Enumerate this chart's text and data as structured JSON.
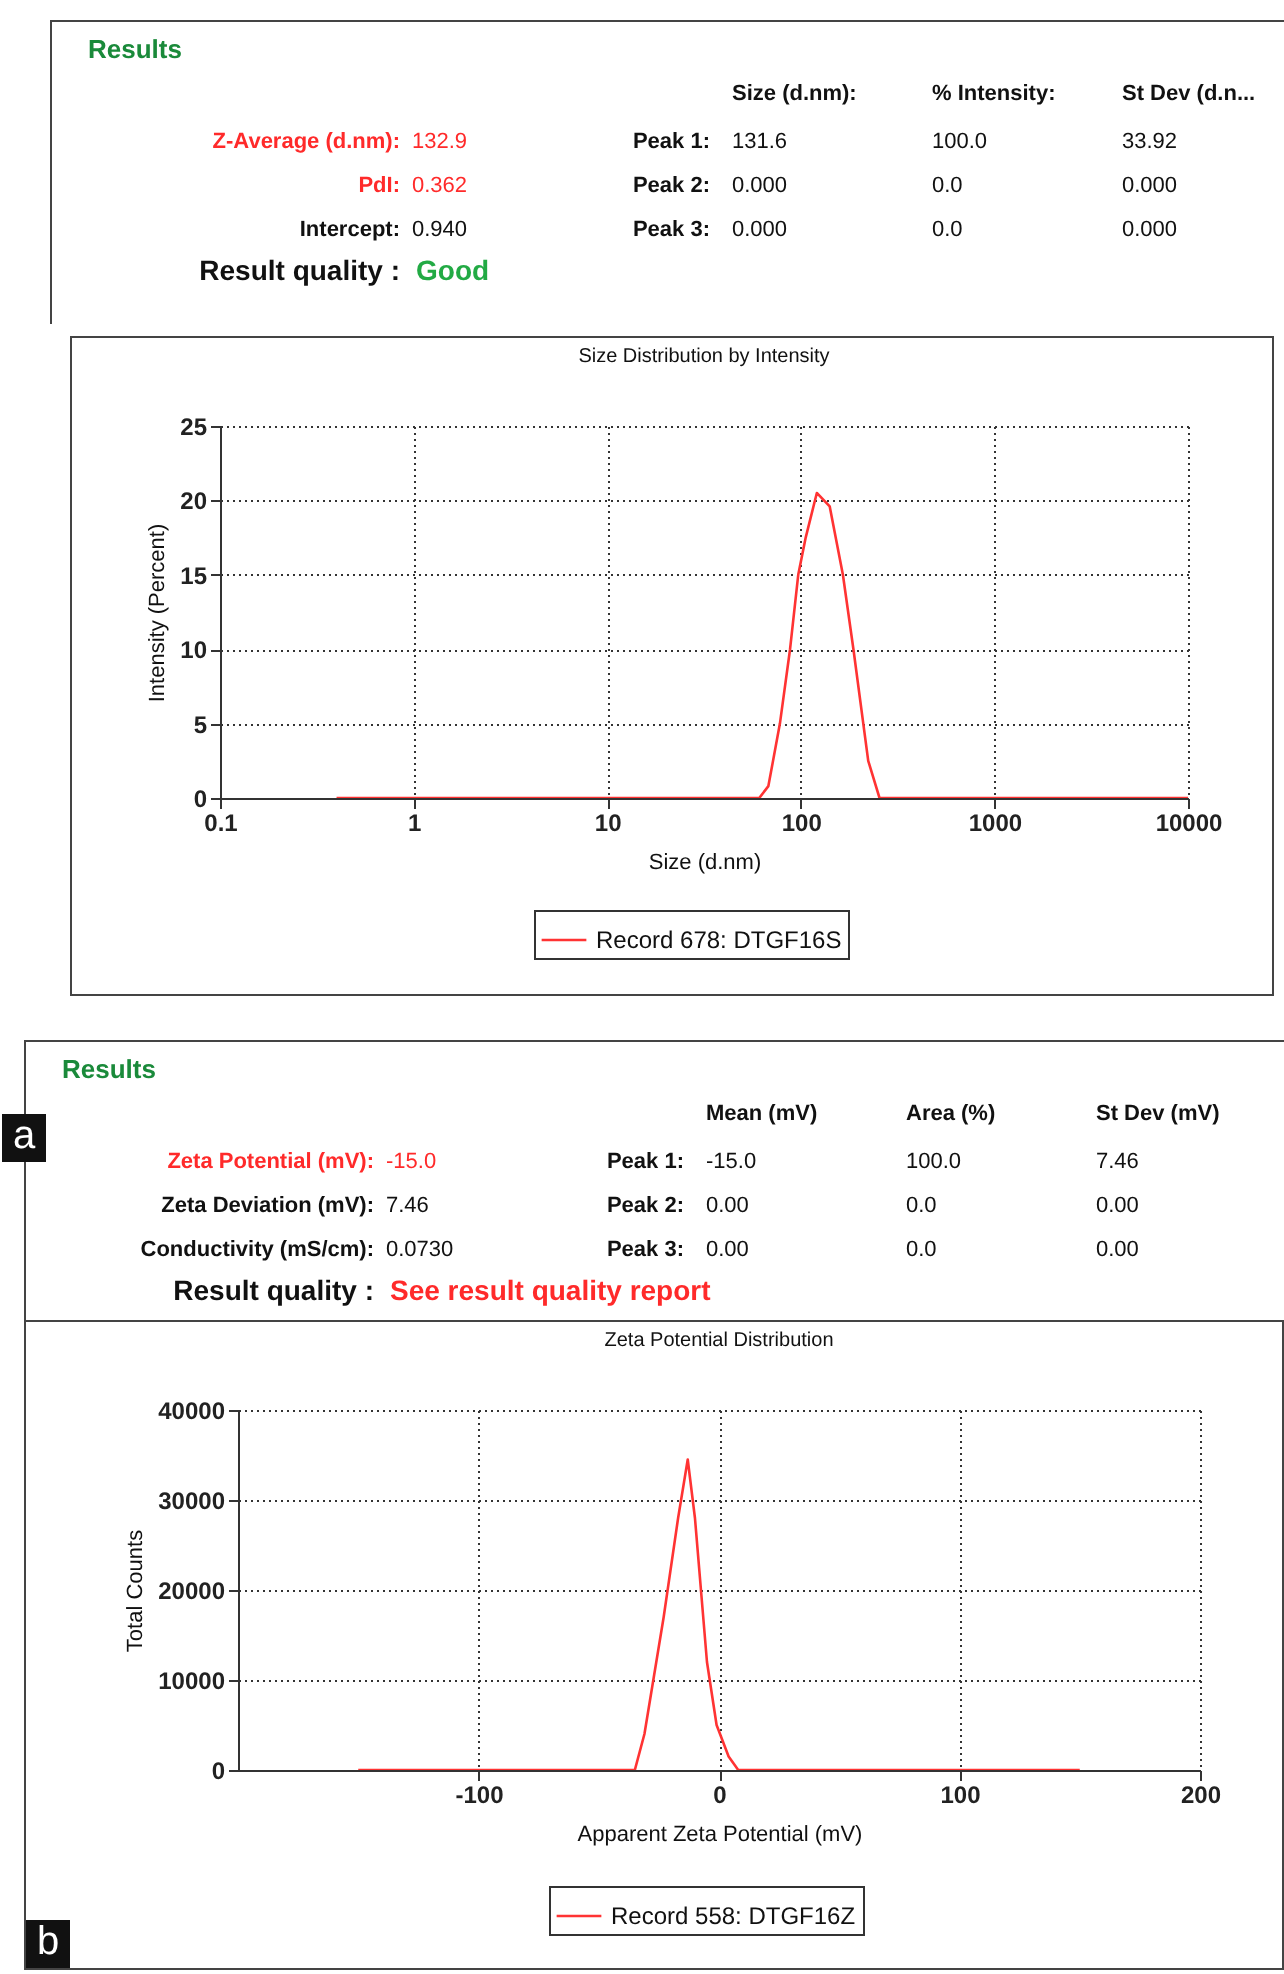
{
  "chart_data": [
    {
      "type": "other",
      "title": "Results",
      "annotations": [
        "Size (d.nm):",
        "% Intensity:",
        "St Dev (d.n...",
        "Z-Average (d.nm):",
        "132.9",
        "Peak 1:",
        "131.6",
        "100.0",
        "33.92",
        "PdI:",
        "0.362",
        "Peak 2:",
        "0.000",
        "0.0",
        "0.000",
        "Intercept:",
        "0.940",
        "Peak 3:",
        "0.000",
        "0.0",
        "0.000",
        "Result quality :",
        "Good"
      ]
    },
    {
      "type": "line",
      "title": "Size Distribution by Intensity",
      "xlabel": "Size (d.nm)",
      "ylabel": "Intensity (Percent)",
      "log": "x",
      "grid": true,
      "legend": "bottom",
      "marker": "none",
      "line_style": "solid",
      "xlim": [
        0.1,
        10000
      ],
      "xticks": [
        0.1,
        1,
        10,
        100,
        1000,
        10000
      ],
      "ylim": [
        0,
        25
      ],
      "yticks": [
        0,
        5,
        10,
        15,
        20,
        25
      ],
      "series": [
        {
          "name": "Record 678: DTGF16S",
          "color": "#ff3333",
          "x": [
            0.4,
            1,
            10,
            61,
            68,
            78,
            88,
            97,
            106,
            121,
            141,
            165,
            187,
            223,
            255,
            1000,
            10000
          ],
          "values": [
            0,
            0,
            0,
            0,
            0.8,
            5,
            10,
            15,
            17.5,
            20.5,
            19.6,
            15,
            10,
            2.5,
            0,
            0,
            0
          ]
        }
      ]
    },
    {
      "type": "other",
      "title": "Results",
      "annotations": [
        "Mean (mV)",
        "Area (%)",
        "St Dev (mV)",
        "Zeta Potential (mV):",
        "-15.0",
        "Peak 1:",
        "-15.0",
        "100.0",
        "7.46",
        "Zeta Deviation (mV):",
        "7.46",
        "Peak 2:",
        "0.00",
        "0.0",
        "0.00",
        "Conductivity  (mS/cm):",
        "0.0730",
        "Peak 3:",
        "0.00",
        "0.0",
        "0.00",
        "Result quality :",
        "See result quality report",
        "a"
      ]
    },
    {
      "type": "line",
      "title": "Zeta Potential Distribution",
      "xlabel": "Apparent Zeta Potential (mV)",
      "ylabel": "Total Counts",
      "grid": true,
      "legend": "bottom",
      "marker": "none",
      "line_style": "solid",
      "xlim": [
        -200,
        200
      ],
      "xticks": [
        -100,
        0,
        100,
        200
      ],
      "ylim": [
        0,
        40000
      ],
      "yticks": [
        0,
        10000,
        20000,
        30000,
        40000
      ],
      "annotations": [
        "b"
      ],
      "series": [
        {
          "name": "Record 558: DTGF16Z",
          "color": "#ff3333",
          "x": [
            -150,
            -100,
            -50,
            -35,
            -31,
            -23,
            -17,
            -13,
            -10,
            -5,
            -1,
            4,
            8,
            50,
            100,
            150
          ],
          "values": [
            0,
            0,
            0,
            0,
            4000,
            17000,
            28000,
            34500,
            28000,
            12000,
            5000,
            1500,
            0,
            0,
            0,
            0
          ]
        }
      ]
    }
  ]
}
